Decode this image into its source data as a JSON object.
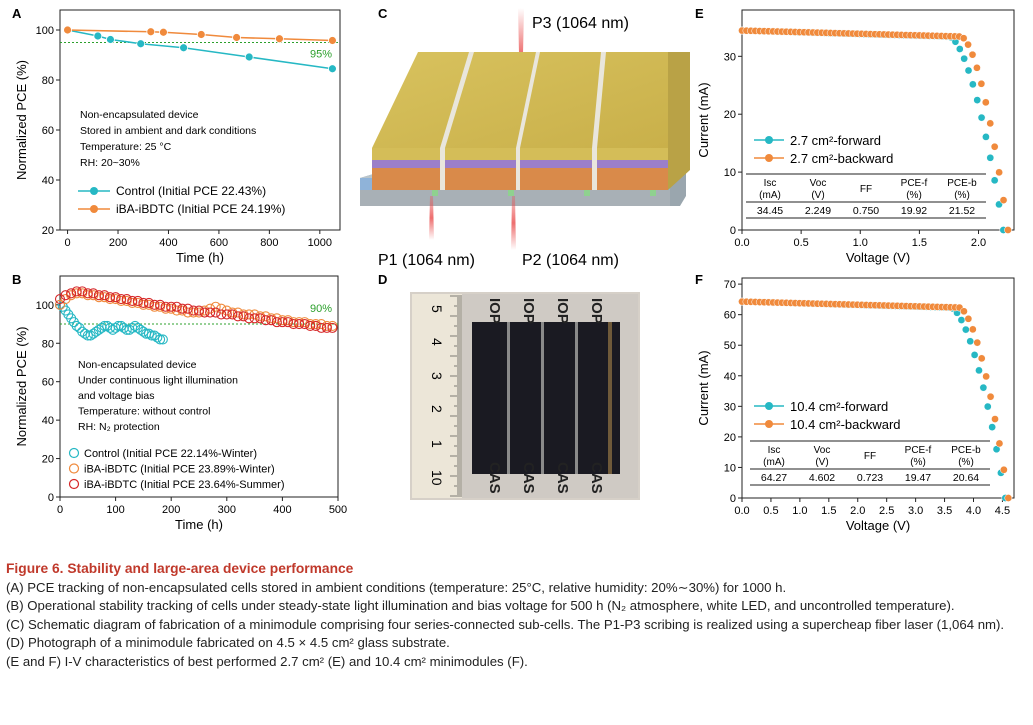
{
  "panels": {
    "A": "A",
    "B": "B",
    "C": "C",
    "D": "D",
    "E": "E",
    "F": "F"
  },
  "chart_data": [
    {
      "id": "A",
      "type": "line",
      "xlabel": "Time (h)",
      "ylabel": "Normalized PCE (%)",
      "xlim": [
        -30,
        1080
      ],
      "ylim": [
        20,
        108
      ],
      "xticks": [
        0,
        200,
        400,
        600,
        800,
        1000
      ],
      "yticks": [
        20,
        40,
        60,
        80,
        100
      ],
      "reference_line": {
        "y": 95,
        "label": "95%",
        "color": "#2ca02c"
      },
      "notes": [
        "Non-encapsulated device",
        "Stored in ambient and dark conditions",
        "Temperature: 25 °C",
        "RH: 20~30%"
      ],
      "series": [
        {
          "name": "Control (Initial PCE 22.43%)",
          "color": "#26b8c4",
          "x": [
            0,
            120,
            170,
            290,
            460,
            720,
            1050
          ],
          "y": [
            100,
            97.6,
            96.2,
            94.5,
            92.9,
            89.2,
            84.5
          ]
        },
        {
          "name": "iBA-iBDTC (Initial PCE 24.19%)",
          "color": "#f08a3c",
          "x": [
            0,
            330,
            380,
            530,
            670,
            840,
            1050
          ],
          "y": [
            100,
            99.3,
            99.1,
            98.2,
            97.0,
            96.5,
            95.8
          ]
        }
      ]
    },
    {
      "id": "B",
      "type": "scatter",
      "xlabel": "Time (h)",
      "ylabel": "Normalized PCE (%)",
      "xlim": [
        0,
        500
      ],
      "ylim": [
        0,
        115
      ],
      "xticks": [
        0,
        100,
        200,
        300,
        400,
        500
      ],
      "yticks": [
        0,
        20,
        40,
        60,
        80,
        100
      ],
      "reference_line": {
        "y": 90,
        "label": "90%",
        "color": "#2ca02c"
      },
      "notes": [
        "Non-encapsulated device",
        "Under continuous light illumination",
        "and voltage bias",
        "Temperature: without control",
        "RH: N₂ protection"
      ],
      "series": [
        {
          "name": "Control (Initial PCE 22.14%-Winter)",
          "color": "#26b8c4",
          "x": [
            0,
            5,
            10,
            15,
            20,
            25,
            30,
            35,
            40,
            45,
            50,
            55,
            60,
            65,
            70,
            75,
            80,
            85,
            90,
            95,
            100,
            105,
            110,
            115,
            120,
            125,
            130,
            135,
            140,
            145,
            150,
            155,
            160,
            165,
            170,
            175,
            180,
            185
          ],
          "y": [
            100,
            99,
            97,
            95,
            93,
            91,
            89,
            88,
            86,
            85,
            84,
            84,
            85,
            86,
            87,
            88,
            89,
            89,
            88,
            87,
            88,
            89,
            89,
            88,
            87,
            87,
            88,
            89,
            88,
            87,
            86,
            85,
            85,
            84,
            84,
            83,
            82,
            82
          ]
        },
        {
          "name": "iBA-iBDTC (Initial PCE 23.89%-Winter)",
          "color": "#f08a3c",
          "x": [
            0,
            10,
            20,
            30,
            40,
            50,
            60,
            70,
            80,
            90,
            100,
            110,
            120,
            130,
            140,
            150,
            160,
            170,
            180,
            190,
            200,
            210,
            220,
            230,
            240,
            250,
            260,
            270,
            280,
            290,
            300,
            310,
            320,
            330,
            340,
            350,
            360,
            370,
            380,
            390,
            400,
            410,
            420,
            430,
            440,
            450,
            460,
            470,
            480,
            490
          ],
          "y": [
            100,
            103,
            105,
            106,
            106,
            105,
            105,
            104,
            104,
            103,
            103,
            102,
            102,
            101,
            101,
            100,
            100,
            99,
            99,
            98,
            98,
            97,
            97,
            96,
            96,
            96,
            97,
            98,
            99,
            98,
            97,
            96,
            96,
            95,
            95,
            95,
            94,
            94,
            93,
            93,
            92,
            92,
            91,
            91,
            91,
            90,
            90,
            90,
            89,
            89
          ]
        },
        {
          "name": "iBA-iBDTC (Initial PCE 23.64%-Summer)",
          "color": "#d62728",
          "x": [
            0,
            10,
            20,
            30,
            40,
            50,
            60,
            70,
            80,
            90,
            100,
            110,
            120,
            130,
            140,
            150,
            160,
            170,
            180,
            190,
            200,
            210,
            220,
            230,
            240,
            250,
            260,
            270,
            280,
            290,
            300,
            310,
            320,
            330,
            340,
            350,
            360,
            370,
            380,
            390,
            400,
            410,
            420,
            430,
            440,
            450,
            460,
            470,
            480,
            490
          ],
          "y": [
            103,
            105,
            106,
            107,
            107,
            106,
            106,
            105,
            105,
            104,
            104,
            103,
            103,
            102,
            102,
            101,
            101,
            100,
            100,
            99,
            99,
            99,
            98,
            98,
            97,
            97,
            96,
            96,
            96,
            95,
            95,
            95,
            94,
            94,
            93,
            93,
            93,
            92,
            92,
            91,
            91,
            91,
            90,
            90,
            90,
            89,
            89,
            88,
            88,
            88
          ]
        }
      ]
    },
    {
      "id": "E",
      "type": "scatter",
      "xlabel": "Voltage (V)",
      "ylabel": "Current (mA)",
      "xlim": [
        0,
        2.3
      ],
      "ylim": [
        0,
        38
      ],
      "xticks": [
        0.0,
        0.5,
        1.0,
        1.5,
        2.0
      ],
      "xticklabels": [
        "0.0",
        "0.5",
        "1.0",
        "1.5",
        "2.0"
      ],
      "yticks": [
        0,
        10,
        20,
        30
      ],
      "series": [
        {
          "name": "2.7 cm²-forward",
          "color": "#26b8c4",
          "jsc": 34.45,
          "voc": 2.21,
          "knee": 1.75
        },
        {
          "name": "2.7 cm²-backward",
          "color": "#f08a3c",
          "jsc": 34.45,
          "voc": 2.249,
          "knee": 1.85
        }
      ],
      "table": {
        "headers": [
          "Isc (mA)",
          "Voc (V)",
          "FF",
          "PCE-f (%)",
          "PCE-b (%)"
        ],
        "row": [
          "34.45",
          "2.249",
          "0.750",
          "19.92",
          "21.52"
        ]
      }
    },
    {
      "id": "F",
      "type": "scatter",
      "xlabel": "Voltage (V)",
      "ylabel": "Current (mA)",
      "xlim": [
        0,
        4.7
      ],
      "ylim": [
        0,
        72
      ],
      "xticks": [
        0.0,
        0.5,
        1.0,
        1.5,
        2.0,
        2.5,
        3.0,
        3.5,
        4.0,
        4.5
      ],
      "xticklabels": [
        "0.0",
        "0.5",
        "1.0",
        "1.5",
        "2.0",
        "2.5",
        "3.0",
        "3.5",
        "4.0",
        "4.5"
      ],
      "yticks": [
        0,
        10,
        20,
        30,
        40,
        50,
        60,
        70
      ],
      "series": [
        {
          "name": "10.4 cm²-forward",
          "color": "#26b8c4",
          "jsc": 64.27,
          "voc": 4.55,
          "knee": 3.6
        },
        {
          "name": "10.4 cm²-backward",
          "color": "#f08a3c",
          "jsc": 64.27,
          "voc": 4.602,
          "knee": 3.75
        }
      ],
      "table": {
        "headers": [
          "Isc (mA)",
          "Voc (V)",
          "FF",
          "PCE-f (%)",
          "PCE-b (%)"
        ],
        "row": [
          "64.27",
          "4.602",
          "0.723",
          "19.47",
          "20.64"
        ]
      }
    }
  ],
  "schematic": {
    "p1": "P1 (1064 nm)",
    "p2": "P2 (1064 nm)",
    "p3": "P3 (1064 nm)"
  },
  "photo": {
    "ruler_numbers": [
      "10",
      "1",
      "2",
      "3",
      "4",
      "5"
    ],
    "label": "IOP",
    "label2": "CAS"
  },
  "caption": {
    "title": "Figure 6. Stability and large-area device performance",
    "a": "(A) PCE tracking of non-encapsulated cells stored in ambient conditions (temperature: 25°C, relative humidity: 20%∼30%) for 1000 h.",
    "b": "(B) Operational stability tracking of cells under steady-state light illumination and bias voltage for 500 h (N₂ atmosphere, white LED, and uncontrolled temperature).",
    "c": "(C) Schematic diagram of fabrication of a minimodule comprising four series-connected sub-cells. The P1-P3 scribing is realized using a supercheap fiber laser (1,064 nm).",
    "d": "(D) Photograph of a minimodule fabricated on 4.5 × 4.5 cm² glass substrate.",
    "ef": "(E and F) I-V characteristics of best performed 2.7 cm² (E) and 10.4 cm² minimodules (F)."
  }
}
